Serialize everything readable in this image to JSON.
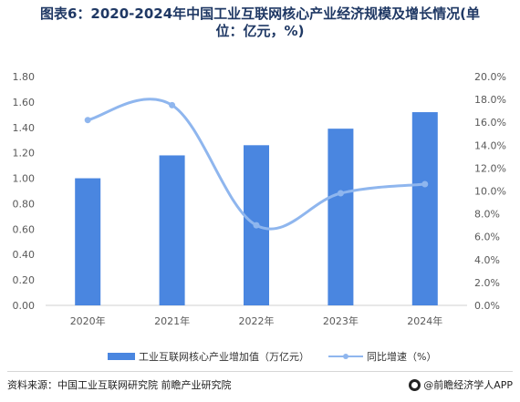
{
  "header": {
    "title_line1": "图表6：2020-2024年中国工业互联网核心产业经济规模及增长情况(单",
    "title_line2": "位：亿元，%)"
  },
  "chart_data": {
    "type": "bar",
    "categories": [
      "2020年",
      "2021年",
      "2022年",
      "2023年",
      "2024年"
    ],
    "series": [
      {
        "name": "工业互联网核心产业增加值（万亿元）",
        "type": "bar",
        "axis": "left",
        "values": [
          1.0,
          1.18,
          1.26,
          1.39,
          1.52
        ]
      },
      {
        "name": "同比增速（%）",
        "type": "line",
        "axis": "right",
        "values": [
          16.2,
          17.5,
          7.0,
          9.8,
          10.6
        ]
      }
    ],
    "y_left": {
      "min": 0,
      "max": 1.8,
      "step": 0.2,
      "ticks": [
        "0.00",
        "0.20",
        "0.40",
        "0.60",
        "0.80",
        "1.00",
        "1.20",
        "1.40",
        "1.60",
        "1.80"
      ]
    },
    "y_right": {
      "min": 0,
      "max": 20,
      "step": 2,
      "ticks": [
        "0.0%",
        "2.0%",
        "4.0%",
        "6.0%",
        "8.0%",
        "10.0%",
        "12.0%",
        "14.0%",
        "16.0%",
        "18.0%",
        "20.0%"
      ]
    },
    "grid": false,
    "legend": "bottom",
    "colors": {
      "bar": "#4a86e0",
      "line": "#8fb6ee",
      "axis": "#d0d0d0",
      "tick_text": "#595959"
    }
  },
  "legend": {
    "bar_label": "工业互联网核心产业增加值（万亿元）",
    "line_label": "同比增速（%）"
  },
  "footer": {
    "source": "资料来源：中国工业互联网研究院 前瞻产业研究院",
    "brand": "@前瞻经济学人APP"
  }
}
